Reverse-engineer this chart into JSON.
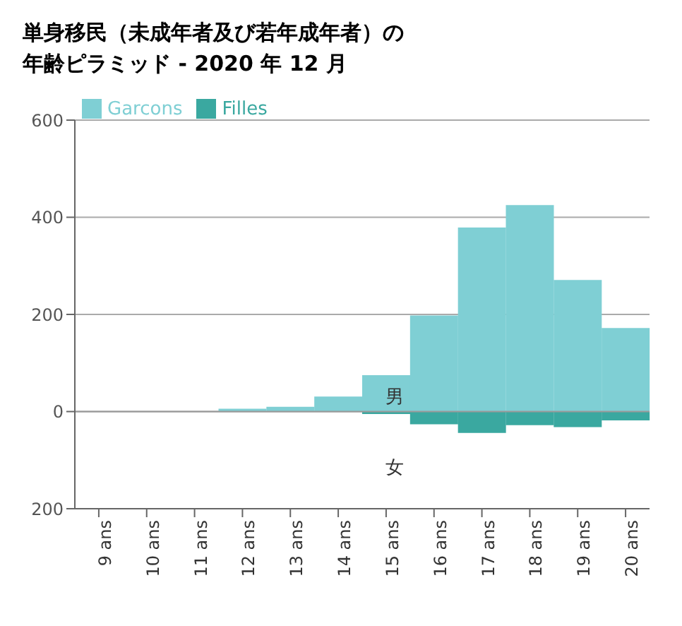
{
  "chart_data": {
    "type": "bar",
    "title": "単身移民（未成年者及び若年成年者）の年齢ピラミッド - 2020 年 12 月",
    "categories": [
      "9 ans",
      "10 ans",
      "11 ans",
      "12 ans",
      "13 ans",
      "14 ans",
      "15 ans",
      "16 ans",
      "17 ans",
      "18 ans",
      "19 ans",
      "20 ans"
    ],
    "series": [
      {
        "name": "Garcons",
        "color": "#7fcfd4",
        "values": [
          0,
          0,
          0,
          6,
          10,
          31,
          75,
          198,
          379,
          425,
          271,
          172
        ]
      },
      {
        "name": "Filles",
        "color": "#3aa8a0",
        "values": [
          0,
          0,
          0,
          0,
          0,
          null,
          -5,
          -26,
          -44,
          -28,
          -32,
          -18
        ]
      }
    ],
    "stacked": true,
    "ylim": [
      -200,
      600
    ],
    "yticks": [
      {
        "value": -200,
        "label": "200"
      },
      0,
      200,
      400,
      600
    ],
    "grid": "y",
    "legend": "top left",
    "annotations": [
      "男",
      "女"
    ]
  }
}
